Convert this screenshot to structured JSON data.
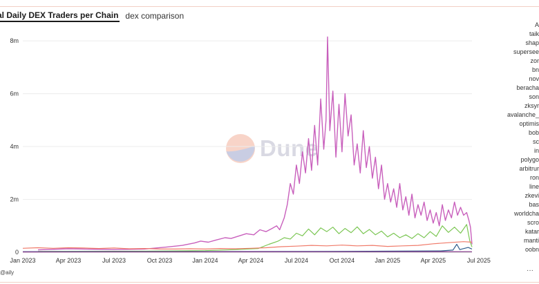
{
  "header": {
    "title": "al Daily DEX Traders per Chain",
    "subtitle_tab": "dex comparison"
  },
  "watermark": {
    "text": "Dune"
  },
  "footer": {
    "credit": "@aily",
    "menu": "···"
  },
  "legend": [
    "A",
    "taik",
    "shap",
    "supersee",
    "zor",
    "bn",
    "nov",
    "beracha",
    "son",
    "zksyr",
    "avalanche_",
    "optimis",
    "bob",
    "sc",
    "in",
    "polygo",
    "arbitrur",
    "ron",
    "line",
    "zkevi",
    "bas",
    "worldcha",
    "scro",
    "katar",
    "manti",
    "oobn"
  ],
  "chart_data": {
    "type": "line",
    "title": "al Daily DEX Traders per Chain",
    "xlabel": "",
    "ylabel": "",
    "x_ticks": [
      "Jan 2023",
      "Apr 2023",
      "Jul 2023",
      "Oct 2023",
      "Jan 2024",
      "Apr 2024",
      "Jul 2024",
      "Oct 2024",
      "Jan 2025",
      "Apr 2025",
      "Jul 2025"
    ],
    "y_ticks": [
      "0",
      "2m",
      "4m",
      "6m",
      "8m"
    ],
    "ylim": [
      0,
      8500000
    ],
    "grid": true,
    "x_range": [
      "2023-01-01",
      "2025-09-05"
    ],
    "series": [
      {
        "color": "#c85fbc",
        "values": [
          [
            1,
            0.09
          ],
          [
            3,
            0.13
          ],
          [
            6,
            0.1
          ],
          [
            8,
            0.12
          ],
          [
            9.5,
            0.2
          ],
          [
            10.5,
            0.26
          ],
          [
            11.3,
            0.35
          ],
          [
            11.7,
            0.42
          ],
          [
            12.2,
            0.38
          ],
          [
            12.7,
            0.46
          ],
          [
            13.3,
            0.55
          ],
          [
            13.7,
            0.52
          ],
          [
            14.3,
            0.63
          ],
          [
            14.7,
            0.7
          ],
          [
            15.2,
            0.66
          ],
          [
            15.6,
            0.85
          ],
          [
            16.0,
            0.78
          ],
          [
            16.4,
            0.9
          ],
          [
            16.7,
            1.0
          ],
          [
            16.9,
            0.85
          ],
          [
            17.2,
            1.3
          ],
          [
            17.4,
            1.8
          ],
          [
            17.6,
            2.6
          ],
          [
            17.8,
            2.2
          ],
          [
            18.0,
            3.3
          ],
          [
            18.2,
            2.6
          ],
          [
            18.4,
            3.8
          ],
          [
            18.6,
            3.0
          ],
          [
            18.8,
            4.3
          ],
          [
            19.0,
            3.1
          ],
          [
            19.2,
            4.8
          ],
          [
            19.4,
            3.3
          ],
          [
            19.6,
            5.8
          ],
          [
            19.8,
            3.9
          ],
          [
            19.95,
            5.0
          ],
          [
            20.05,
            8.15
          ],
          [
            20.2,
            4.6
          ],
          [
            20.4,
            6.1
          ],
          [
            20.6,
            3.6
          ],
          [
            20.8,
            5.6
          ],
          [
            21.0,
            3.8
          ],
          [
            21.2,
            6.0
          ],
          [
            21.4,
            4.4
          ],
          [
            21.6,
            5.2
          ],
          [
            21.8,
            3.3
          ],
          [
            22.0,
            4.1
          ],
          [
            22.2,
            3.0
          ],
          [
            22.4,
            4.6
          ],
          [
            22.6,
            3.2
          ],
          [
            22.8,
            4.0
          ],
          [
            23.0,
            2.8
          ],
          [
            23.2,
            3.6
          ],
          [
            23.4,
            2.4
          ],
          [
            23.6,
            3.3
          ],
          [
            23.8,
            2.0
          ],
          [
            24.0,
            2.6
          ],
          [
            24.2,
            1.9
          ],
          [
            24.4,
            2.4
          ],
          [
            24.6,
            1.7
          ],
          [
            24.8,
            2.6
          ],
          [
            25.0,
            1.6
          ],
          [
            25.2,
            2.1
          ],
          [
            25.4,
            1.4
          ],
          [
            25.6,
            2.2
          ],
          [
            25.8,
            1.3
          ],
          [
            26.0,
            1.8
          ],
          [
            26.2,
            1.4
          ],
          [
            26.4,
            1.9
          ],
          [
            26.6,
            1.2
          ],
          [
            26.8,
            1.6
          ],
          [
            27.0,
            1.1
          ],
          [
            27.2,
            1.5
          ],
          [
            27.4,
            1.0
          ],
          [
            27.6,
            1.8
          ],
          [
            27.8,
            1.2
          ],
          [
            28.0,
            1.6
          ],
          [
            28.2,
            1.3
          ],
          [
            28.4,
            1.9
          ],
          [
            28.6,
            1.4
          ],
          [
            28.8,
            1.7
          ],
          [
            29.0,
            1.4
          ],
          [
            29.2,
            1.5
          ],
          [
            29.35,
            1.2
          ],
          [
            29.45,
            0.95
          ],
          [
            29.55,
            0.3
          ]
        ]
      },
      {
        "color": "#7bc653",
        "values": [
          [
            1,
            0.03
          ],
          [
            8,
            0.04
          ],
          [
            12,
            0.06
          ],
          [
            14,
            0.1
          ],
          [
            15.5,
            0.14
          ],
          [
            16.2,
            0.3
          ],
          [
            16.8,
            0.42
          ],
          [
            17.2,
            0.55
          ],
          [
            17.6,
            0.5
          ],
          [
            18.0,
            0.72
          ],
          [
            18.4,
            0.62
          ],
          [
            18.8,
            0.88
          ],
          [
            19.2,
            0.66
          ],
          [
            19.6,
            0.92
          ],
          [
            20.0,
            0.78
          ],
          [
            20.4,
            0.95
          ],
          [
            20.8,
            0.7
          ],
          [
            21.2,
            0.9
          ],
          [
            21.6,
            0.74
          ],
          [
            22.0,
            0.96
          ],
          [
            22.4,
            0.7
          ],
          [
            22.8,
            0.86
          ],
          [
            23.2,
            0.66
          ],
          [
            23.6,
            0.8
          ],
          [
            24.0,
            0.58
          ],
          [
            24.4,
            0.72
          ],
          [
            24.8,
            0.55
          ],
          [
            25.2,
            0.66
          ],
          [
            25.6,
            0.52
          ],
          [
            26.0,
            0.7
          ],
          [
            26.4,
            0.55
          ],
          [
            26.8,
            0.78
          ],
          [
            27.2,
            0.6
          ],
          [
            27.6,
            1.0
          ],
          [
            28.0,
            0.75
          ],
          [
            28.4,
            0.95
          ],
          [
            28.8,
            0.72
          ],
          [
            29.2,
            1.05
          ],
          [
            29.4,
            0.45
          ],
          [
            29.55,
            0.2
          ]
        ]
      },
      {
        "color": "#f07a69",
        "values": [
          [
            0,
            0.15
          ],
          [
            1,
            0.17
          ],
          [
            2,
            0.15
          ],
          [
            3,
            0.17
          ],
          [
            4,
            0.16
          ],
          [
            5,
            0.14
          ],
          [
            6,
            0.16
          ],
          [
            7,
            0.13
          ],
          [
            8,
            0.14
          ],
          [
            9,
            0.12
          ],
          [
            10,
            0.12
          ],
          [
            11,
            0.13
          ],
          [
            12,
            0.12
          ],
          [
            13,
            0.14
          ],
          [
            14,
            0.13
          ],
          [
            15,
            0.15
          ],
          [
            16,
            0.17
          ],
          [
            17,
            0.21
          ],
          [
            18,
            0.23
          ],
          [
            19,
            0.26
          ],
          [
            20,
            0.24
          ],
          [
            21,
            0.27
          ],
          [
            22,
            0.24
          ],
          [
            23,
            0.26
          ],
          [
            24,
            0.22
          ],
          [
            25,
            0.24
          ],
          [
            26,
            0.26
          ],
          [
            27,
            0.32
          ],
          [
            28,
            0.36
          ],
          [
            29,
            0.4
          ],
          [
            29.55,
            0.38
          ]
        ]
      },
      {
        "color": "#2f5b8a",
        "values": [
          [
            0,
            0.02
          ],
          [
            20,
            0.03
          ],
          [
            27.5,
            0.05
          ],
          [
            28.3,
            0.08
          ],
          [
            28.55,
            0.3
          ],
          [
            28.75,
            0.1
          ],
          [
            29.3,
            0.18
          ],
          [
            29.55,
            0.12
          ]
        ]
      },
      {
        "color": "#8a3b8f",
        "values": [
          [
            0,
            0.01
          ],
          [
            29.55,
            0.02
          ]
        ]
      }
    ]
  }
}
